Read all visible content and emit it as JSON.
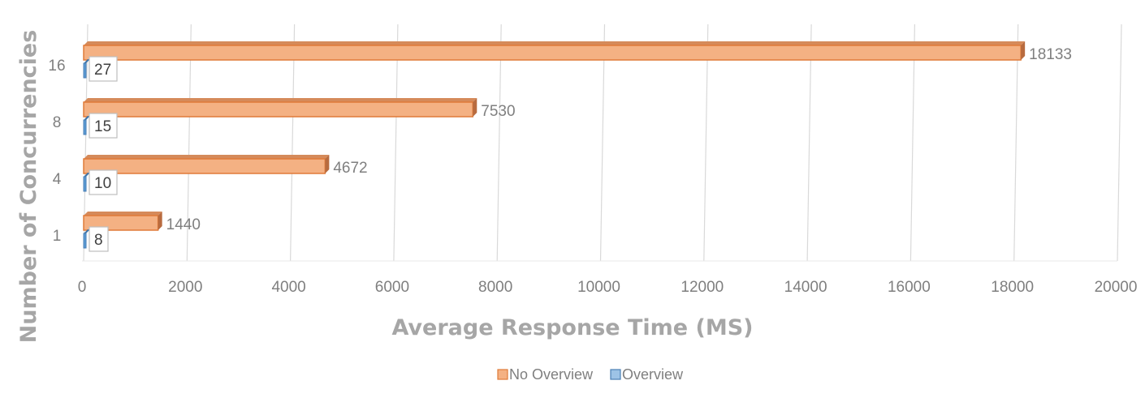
{
  "chart_data": {
    "type": "bar",
    "orientation": "horizontal",
    "categories": [
      "1",
      "4",
      "8",
      "16"
    ],
    "series": [
      {
        "name": "No Overview",
        "values": [
          1440,
          4672,
          7530,
          18133
        ],
        "color": "#f4b183",
        "edge_color": "#e07b39"
      },
      {
        "name": "Overview",
        "values": [
          8,
          10,
          15,
          27
        ],
        "color": "#9dc3e6",
        "edge_color": "#4a7fb5"
      }
    ],
    "xlabel": "Average Response Time (MS)",
    "ylabel": "Number of Concurrencies",
    "xlim": [
      0,
      20000
    ],
    "xticks": [
      0,
      2000,
      4000,
      6000,
      8000,
      10000,
      12000,
      14000,
      16000,
      18000,
      20000
    ],
    "grid": true,
    "legend_position": "bottom"
  }
}
